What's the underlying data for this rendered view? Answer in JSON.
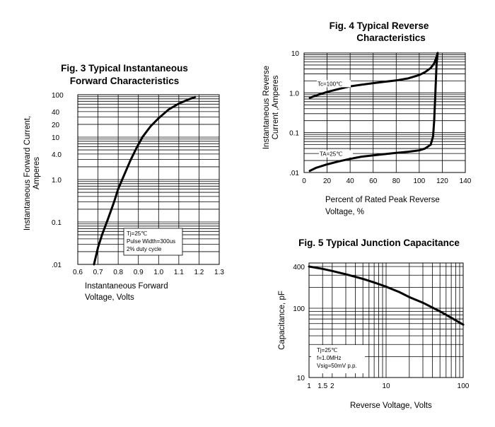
{
  "chart_data": [
    {
      "type": "line",
      "title_lines": [
        "Fig. 3 Typical Instantaneous",
        "Forward Characteristics"
      ],
      "xlabel_lines": [
        "Instantaneous Forward",
        "Voltage, Volts"
      ],
      "ylabel_lines": [
        "Instantaneous Forward Current,",
        "Amperes"
      ],
      "x_ticks": [
        "0.6",
        "0.7",
        "0.8",
        "0.9",
        "1.0",
        "1.1",
        "1.2",
        "1.3"
      ],
      "y_ticks": [
        {
          "value": 0.01,
          "label": ".01"
        },
        {
          "value": 0.1,
          "label": "0.1"
        },
        {
          "value": 1,
          "label": "1.0"
        },
        {
          "value": 4,
          "label": "4.0"
        },
        {
          "value": 10,
          "label": "10"
        },
        {
          "value": 20,
          "label": "20"
        },
        {
          "value": 40,
          "label": "40"
        },
        {
          "value": 100,
          "label": "100"
        }
      ],
      "xlim": [
        0.6,
        1.3
      ],
      "ylim": [
        0.01,
        100
      ],
      "yscale": "log",
      "legend_lines": [
        "Tj=25℃",
        "Pulse Width=300us",
        "2% duty cycle"
      ],
      "series": [
        {
          "x": [
            0.68,
            0.7,
            0.72,
            0.75,
            0.78,
            0.8,
            0.83,
            0.86,
            0.89,
            0.92,
            0.96,
            1.0,
            1.05,
            1.1,
            1.15,
            1.18
          ],
          "y": [
            0.01,
            0.025,
            0.05,
            0.12,
            0.3,
            0.6,
            1.3,
            2.8,
            5.5,
            10,
            18,
            28,
            45,
            62,
            78,
            88
          ]
        }
      ]
    },
    {
      "type": "line",
      "title_lines": [
        "Fig. 4 Typical Reverse",
        "Characteristics"
      ],
      "xlabel_lines": [
        "Percent of Rated Peak  Reverse",
        "Voltage, %"
      ],
      "ylabel_lines": [
        "Instantaneous Reverse",
        "Current ,Amperes"
      ],
      "x_ticks": [
        "0",
        "20",
        "40",
        "60",
        "80",
        "100",
        "120",
        "140"
      ],
      "y_ticks": [
        {
          "value": 0.01,
          "label": ".01"
        },
        {
          "value": 0.1,
          "label": "0.1"
        },
        {
          "value": 1,
          "label": "1.0"
        },
        {
          "value": 10,
          "label": "10"
        }
      ],
      "xlim": [
        0,
        140
      ],
      "ylim": [
        0.01,
        10
      ],
      "yscale": "log",
      "series": [
        {
          "name": "Tc=100℃",
          "x": [
            5,
            10,
            20,
            30,
            40,
            50,
            60,
            70,
            80,
            90,
            100,
            105,
            110,
            113,
            115,
            116
          ],
          "y": [
            0.75,
            0.85,
            1.05,
            1.25,
            1.45,
            1.6,
            1.75,
            1.9,
            2.05,
            2.3,
            2.8,
            3.3,
            4.2,
            5.5,
            8,
            10
          ]
        },
        {
          "name": "TA=25℃",
          "x": [
            5,
            10,
            20,
            30,
            40,
            50,
            60,
            70,
            80,
            90,
            100,
            105,
            110,
            112,
            113,
            114,
            115,
            116
          ],
          "y": [
            0.011,
            0.013,
            0.016,
            0.019,
            0.022,
            0.025,
            0.027,
            0.029,
            0.031,
            0.033,
            0.036,
            0.04,
            0.05,
            0.08,
            0.2,
            1,
            5,
            10
          ]
        }
      ]
    },
    {
      "type": "line",
      "title_lines": [
        "Fig. 5 Typical Junction Capacitance"
      ],
      "xlabel_lines": [
        "Reverse Voltage, Volts"
      ],
      "ylabel_lines": [
        "Capacitance, pF"
      ],
      "x_ticks": [
        {
          "value": 1,
          "label": "1"
        },
        {
          "value": 1.5,
          "label": "1.5"
        },
        {
          "value": 2,
          "label": "2"
        },
        {
          "value": 10,
          "label": "10"
        },
        {
          "value": 100,
          "label": "100"
        }
      ],
      "y_ticks": [
        {
          "value": 10,
          "label": "10"
        },
        {
          "value": 100,
          "label": "100"
        },
        {
          "value": 400,
          "label": "400"
        }
      ],
      "xlim": [
        1,
        100
      ],
      "ylim": [
        10,
        450
      ],
      "xscale": "log",
      "yscale": "log",
      "legend_lines": [
        "Tj=25℃",
        "f=1.0MHz",
        "Vsig=50mV p.p."
      ],
      "series": [
        {
          "x": [
            1,
            1.5,
            2,
            3,
            5,
            7,
            10,
            15,
            20,
            30,
            50,
            70,
            100
          ],
          "y": [
            400,
            370,
            345,
            310,
            265,
            235,
            205,
            170,
            145,
            120,
            90,
            73,
            58
          ]
        }
      ]
    }
  ]
}
